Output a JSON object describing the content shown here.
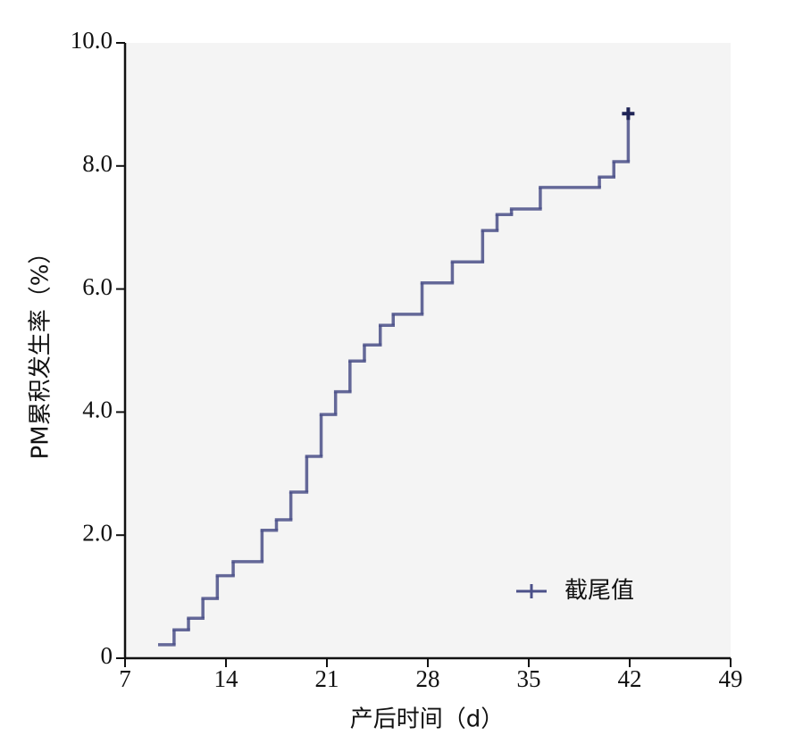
{
  "chart_data": {
    "type": "step",
    "xlabel": "产后时间（d）",
    "ylabel": "PM累积发生率（%）",
    "x": [
      9.4,
      10.4,
      11.4,
      12.4,
      13.4,
      14.5,
      16.5,
      17.5,
      18.5,
      19.6,
      20.6,
      21.6,
      22.6,
      23.6,
      24.7,
      25.6,
      27.6,
      29.7,
      31.8,
      32.8,
      33.8,
      35.8,
      39.9,
      40.9,
      41.9
    ],
    "series": [
      {
        "name": "截尾值",
        "color": "#4b5089",
        "values": [
          0.22,
          0.46,
          0.65,
          0.97,
          1.34,
          1.57,
          2.08,
          2.25,
          2.7,
          3.28,
          3.96,
          4.33,
          4.83,
          5.09,
          5.41,
          5.59,
          6.1,
          6.44,
          6.95,
          7.21,
          7.3,
          7.65,
          7.82,
          8.07,
          8.85
        ]
      }
    ],
    "censored_x": [
      41.9
    ],
    "censored_values": [
      8.85
    ],
    "xlim": [
      7,
      49
    ],
    "xticks": [
      7,
      14,
      21,
      28,
      35,
      42,
      49
    ],
    "ylim": [
      0,
      10
    ],
    "yticks": [
      0,
      {
        "value": 2,
        "label": "2.0"
      },
      {
        "value": 4,
        "label": "4.0"
      },
      {
        "value": 6,
        "label": "6.0"
      },
      {
        "value": 8,
        "label": "8.0"
      },
      {
        "value": 10,
        "label": "10.0"
      }
    ],
    "legend": "lower-right"
  }
}
